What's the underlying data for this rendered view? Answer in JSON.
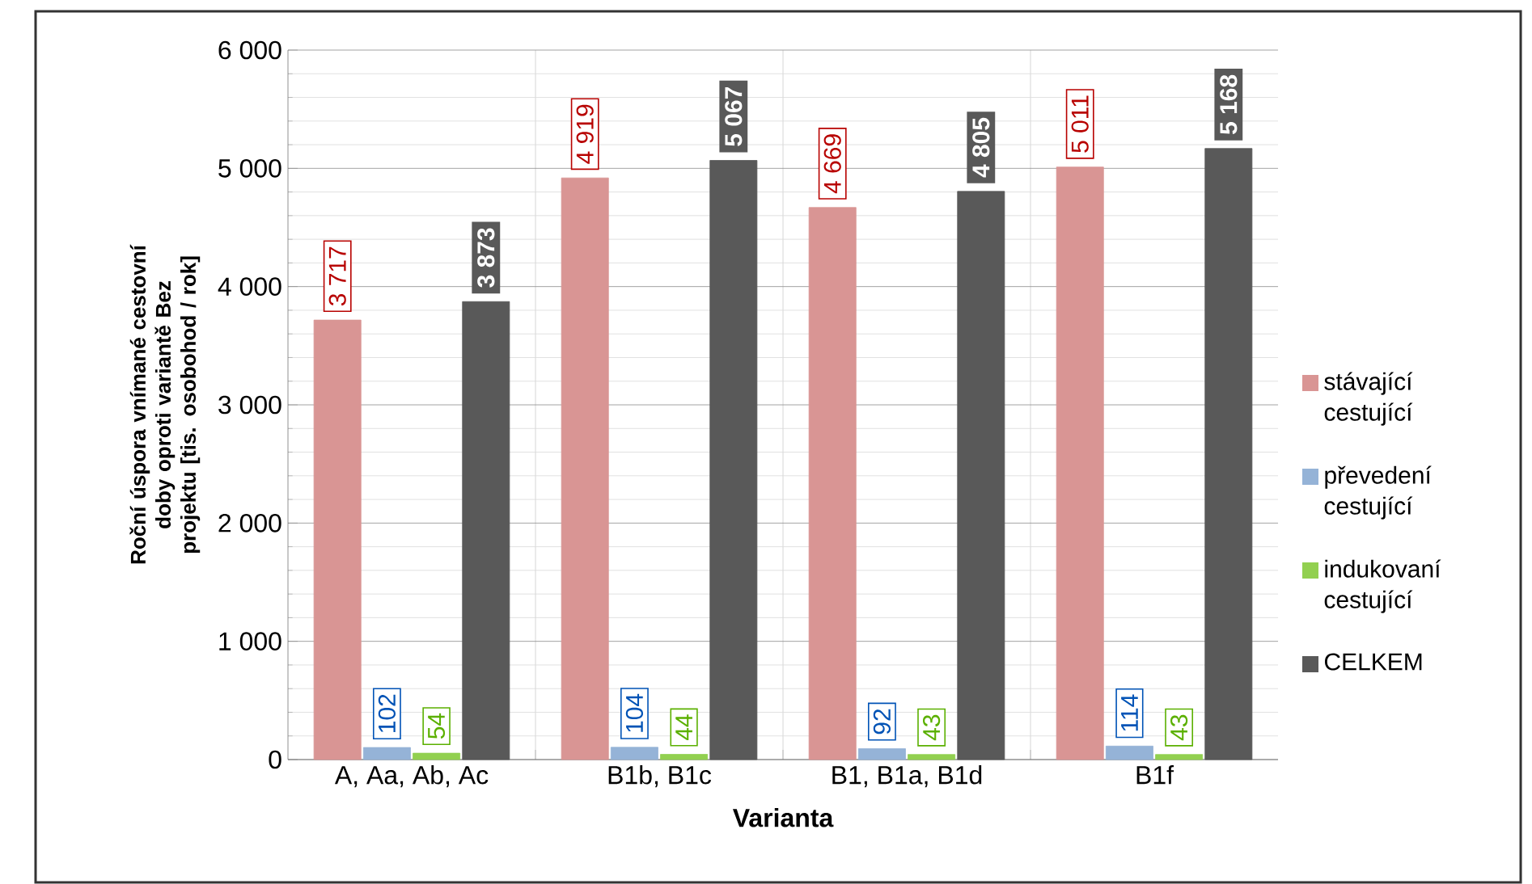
{
  "chart_data": {
    "type": "bar",
    "xlabel": "Varianta",
    "ylabel": "Roční úspora vnímané cestovní doby oproti variantě Bez projektu [tis. osobohod / rok]",
    "categories": [
      "A, Aa, Ab, Ac",
      "B1b, B1c",
      "B1, B1a, B1d",
      "B1f"
    ],
    "series": [
      {
        "name": "stávající cestující",
        "color": "#d99594",
        "values": [
          3717,
          4919,
          4669,
          5011
        ],
        "value_labels": [
          "3 717",
          "4 919",
          "4 669",
          "5 011"
        ]
      },
      {
        "name": "převedení cestující",
        "color": "#95b3d7",
        "values": [
          102,
          104,
          92,
          114
        ],
        "value_labels": [
          "102",
          "104",
          "92",
          "114"
        ]
      },
      {
        "name": "indukovaní cestující",
        "color": "#92d050",
        "values": [
          54,
          44,
          43,
          43
        ],
        "value_labels": [
          "54",
          "44",
          "43",
          "43"
        ]
      },
      {
        "name": "CELKEM",
        "color": "#595959",
        "values": [
          3873,
          5067,
          4805,
          5168
        ],
        "value_labels": [
          "3 873",
          "5 067",
          "4 805",
          "5 168"
        ]
      }
    ],
    "ylim": [
      0,
      6000
    ],
    "yticks": [
      {
        "value": 0,
        "label": "0"
      },
      {
        "value": 1000,
        "label": "1 000"
      },
      {
        "value": 2000,
        "label": "2 000"
      },
      {
        "value": 3000,
        "label": "3 000"
      },
      {
        "value": 4000,
        "label": "4 000"
      },
      {
        "value": 5000,
        "label": "5 000"
      },
      {
        "value": 6000,
        "label": "6 000"
      }
    ],
    "grid": true,
    "legend": "right"
  }
}
